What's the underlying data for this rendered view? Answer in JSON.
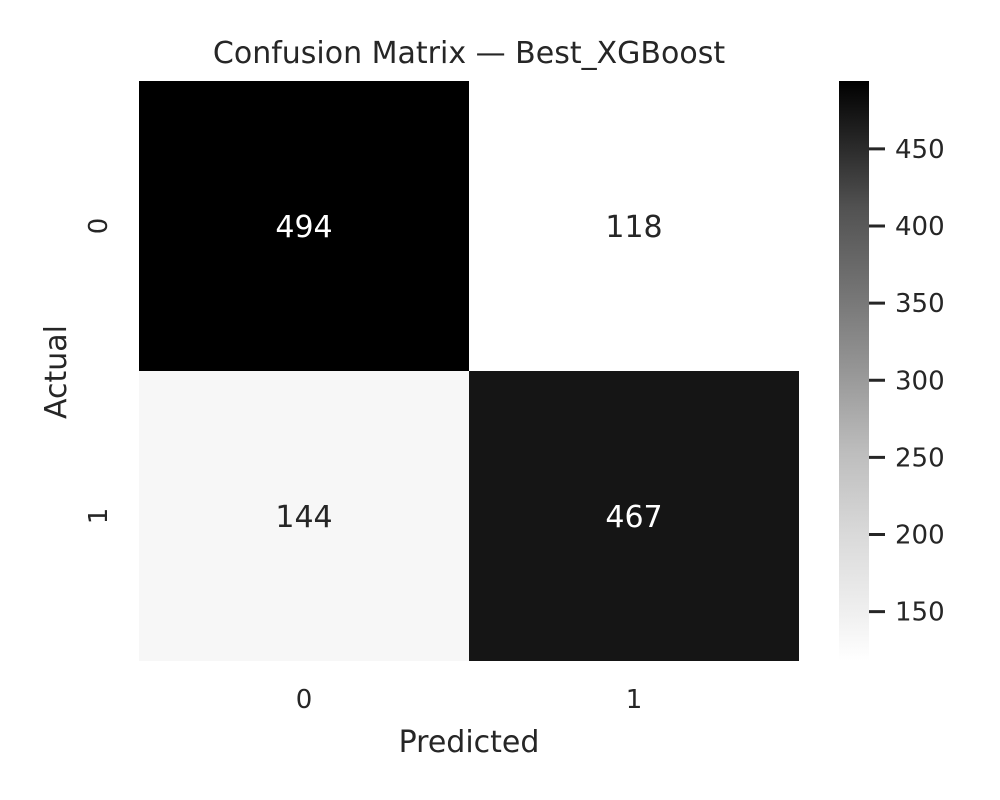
{
  "chart_data": {
    "type": "heatmap",
    "title": "Confusion Matrix — Best_XGBoost",
    "xlabel": "Predicted",
    "ylabel": "Actual",
    "x_categories": [
      "0",
      "1"
    ],
    "y_categories": [
      "0",
      "1"
    ],
    "values": [
      [
        494,
        118
      ],
      [
        144,
        467
      ]
    ],
    "colormap": "Greys",
    "colorbar": {
      "range": [
        118,
        494
      ],
      "ticks": [
        150,
        200,
        250,
        300,
        350,
        400,
        450
      ],
      "tick_labels": [
        "150",
        "200",
        "250",
        "300",
        "350",
        "400",
        "450"
      ]
    },
    "grid": false
  }
}
